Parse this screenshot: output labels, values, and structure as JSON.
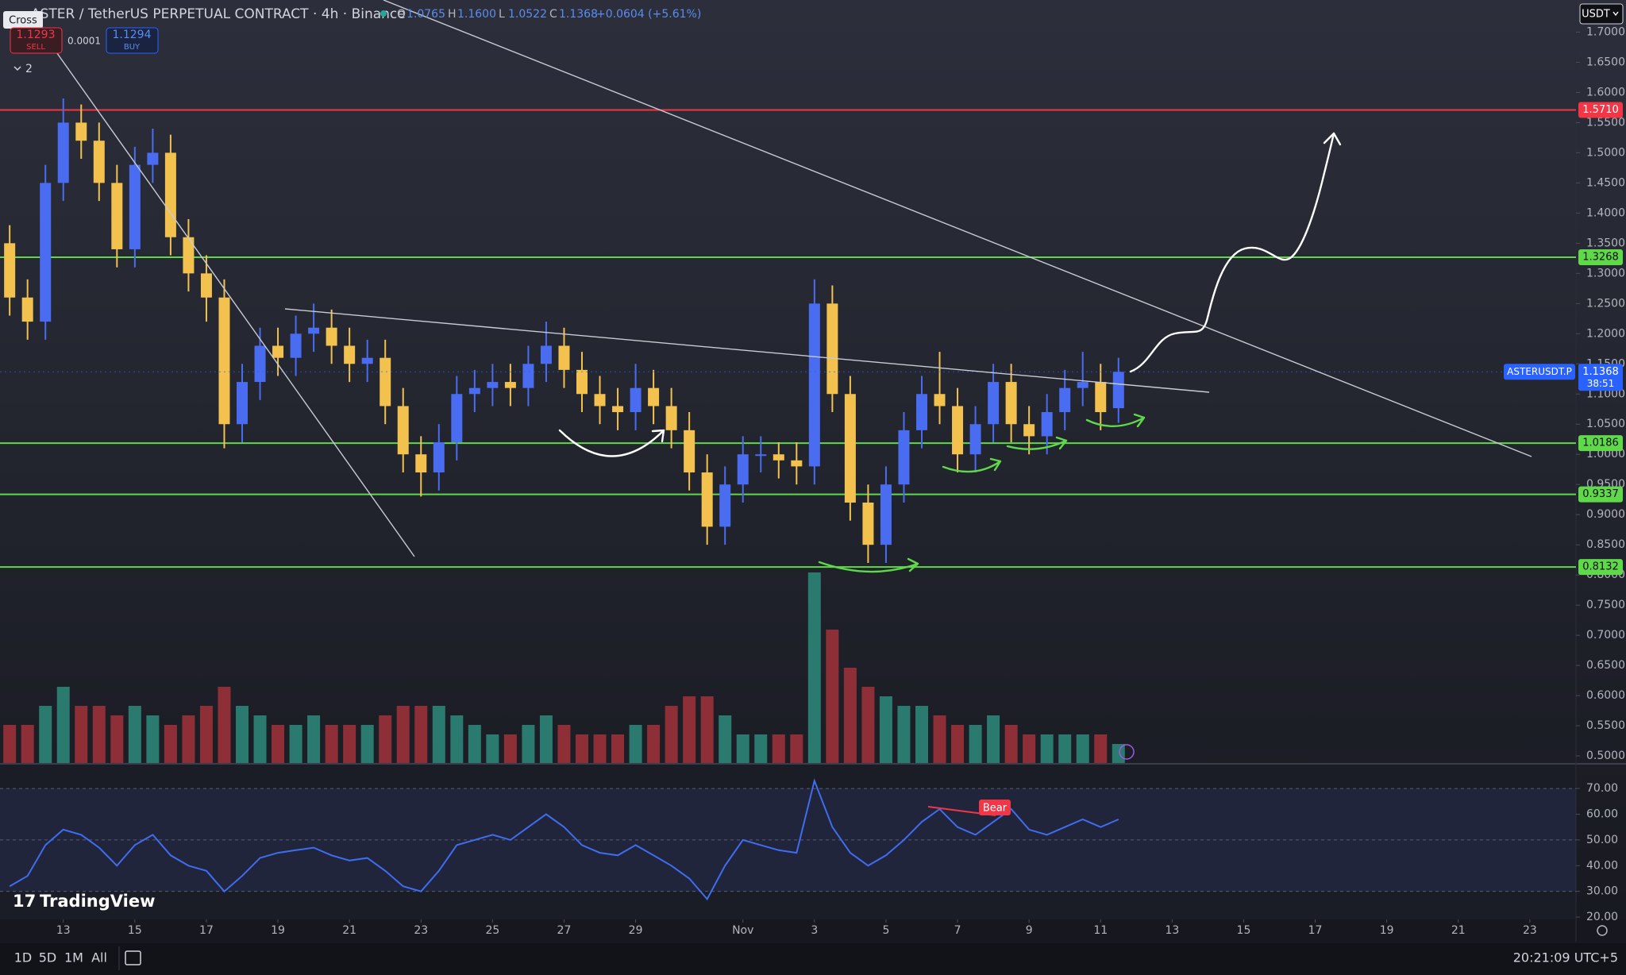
{
  "ui": {
    "cross": "Cross",
    "title": "ASTER / TetherUS PERPETUAL CONTRACT · 4h · Binance",
    "ohlc": [
      {
        "key": "O",
        "value": "1.0765"
      },
      {
        "key": "H",
        "value": "1.1600"
      },
      {
        "key": "L",
        "value": "1.0522"
      },
      {
        "key": "C",
        "value": "1.1368"
      }
    ],
    "change": "+0.0604 (+5.61%)",
    "sell_price": "1.1293",
    "sell": "SELL",
    "spread": "0.0001",
    "buy_price": "1.1294",
    "buy": "BUY",
    "indicators_count": "2",
    "currency": "USDT",
    "logo": "TradingView",
    "ranges": [
      "1D",
      "5D",
      "1M",
      "All"
    ],
    "clock": "20:21:09 UTC+5"
  },
  "chart_data": {
    "type": "candlestick",
    "x": [
      11.5,
      12,
      12.5,
      13,
      13.5,
      14,
      14.5,
      15,
      15.5,
      16,
      16.5,
      17,
      17.5,
      18,
      18.5,
      19,
      19.5,
      20,
      20.5,
      21,
      21.5,
      22,
      22.5,
      23,
      23.5,
      24,
      24.5,
      25,
      25.5,
      26,
      26.5,
      27,
      27.5,
      28,
      28.5,
      29,
      29.5,
      30,
      30.5,
      31,
      31.5,
      32,
      32.5,
      33,
      33.5,
      34,
      34.5,
      35,
      35.5,
      36,
      36.5,
      37,
      37.5,
      38,
      38.5,
      39,
      39.5,
      40,
      40.5,
      41,
      41.5,
      42,
      42.5
    ],
    "xlim": [
      11.23,
      55.29
    ],
    "xticks": [
      13,
      15,
      17,
      19,
      21,
      23,
      25,
      27,
      29,
      {
        "value": 32,
        "label": "Nov"
      },
      {
        "value": 34,
        "label": "3"
      },
      {
        "value": 36,
        "label": "5"
      },
      {
        "value": 38,
        "label": "7"
      },
      {
        "value": 40,
        "label": "9"
      },
      {
        "value": 42,
        "label": "11"
      },
      {
        "value": 44,
        "label": "13"
      },
      {
        "value": 46,
        "label": "15"
      },
      {
        "value": 48,
        "label": "17"
      },
      {
        "value": 50,
        "label": "19"
      },
      {
        "value": 52,
        "label": "21"
      },
      {
        "value": 54,
        "label": "23"
      }
    ],
    "open": [
      1.35,
      1.26,
      1.22,
      1.45,
      1.55,
      1.52,
      1.45,
      1.34,
      1.48,
      1.5,
      1.36,
      1.3,
      1.26,
      1.05,
      1.12,
      1.18,
      1.16,
      1.2,
      1.21,
      1.18,
      1.15,
      1.16,
      1.08,
      1.0,
      0.97,
      1.02,
      1.1,
      1.11,
      1.12,
      1.11,
      1.15,
      1.18,
      1.14,
      1.1,
      1.08,
      1.07,
      1.11,
      1.08,
      1.04,
      0.97,
      0.88,
      0.95,
      1.0,
      1.0,
      0.99,
      0.98,
      1.25,
      1.1,
      0.92,
      0.85,
      0.95,
      1.04,
      1.1,
      1.08,
      1.0,
      1.05,
      1.12,
      1.05,
      1.03,
      1.07,
      1.11,
      1.12,
      1.0765
    ],
    "high": [
      1.38,
      1.29,
      1.48,
      1.59,
      1.58,
      1.55,
      1.48,
      1.51,
      1.54,
      1.53,
      1.39,
      1.33,
      1.29,
      1.15,
      1.21,
      1.21,
      1.23,
      1.25,
      1.24,
      1.21,
      1.19,
      1.19,
      1.11,
      1.03,
      1.05,
      1.13,
      1.14,
      1.15,
      1.15,
      1.18,
      1.22,
      1.21,
      1.17,
      1.13,
      1.11,
      1.15,
      1.14,
      1.11,
      1.07,
      1.0,
      0.98,
      1.03,
      1.03,
      1.02,
      1.02,
      1.29,
      1.28,
      1.13,
      0.95,
      0.98,
      1.07,
      1.13,
      1.17,
      1.11,
      1.08,
      1.15,
      1.15,
      1.08,
      1.1,
      1.14,
      1.17,
      1.15,
      1.16
    ],
    "low": [
      1.23,
      1.19,
      1.19,
      1.42,
      1.49,
      1.42,
      1.31,
      1.31,
      1.45,
      1.33,
      1.27,
      1.22,
      1.01,
      1.02,
      1.09,
      1.13,
      1.13,
      1.17,
      1.15,
      1.12,
      1.12,
      1.05,
      0.97,
      0.93,
      0.94,
      0.99,
      1.07,
      1.08,
      1.08,
      1.08,
      1.12,
      1.11,
      1.07,
      1.05,
      1.04,
      1.04,
      1.05,
      1.01,
      0.94,
      0.85,
      0.85,
      0.92,
      0.97,
      0.96,
      0.95,
      0.95,
      1.07,
      0.89,
      0.82,
      0.82,
      0.92,
      1.01,
      1.05,
      0.97,
      0.97,
      1.02,
      1.02,
      1.0,
      1.0,
      1.04,
      1.08,
      1.04,
      1.0522
    ],
    "close": [
      1.26,
      1.22,
      1.45,
      1.55,
      1.52,
      1.45,
      1.34,
      1.48,
      1.5,
      1.36,
      1.3,
      1.26,
      1.05,
      1.12,
      1.18,
      1.16,
      1.2,
      1.21,
      1.18,
      1.15,
      1.16,
      1.08,
      1.0,
      0.97,
      1.02,
      1.1,
      1.11,
      1.12,
      1.11,
      1.15,
      1.18,
      1.14,
      1.1,
      1.08,
      1.07,
      1.11,
      1.08,
      1.04,
      0.97,
      0.88,
      0.95,
      1.0,
      1.0,
      0.99,
      0.98,
      1.25,
      1.1,
      0.92,
      0.85,
      0.95,
      1.04,
      1.1,
      1.08,
      1.0,
      1.05,
      1.12,
      1.05,
      1.03,
      1.07,
      1.11,
      1.12,
      1.07,
      1.1368
    ],
    "ylim": [
      0.4882,
      1.7533
    ],
    "yticks": [
      {
        "value": 1.7,
        "label": "1.7000"
      },
      {
        "value": 1.65,
        "label": "1.6500"
      },
      {
        "value": 1.6,
        "label": "1.6000"
      },
      {
        "value": 1.55,
        "label": "1.5500"
      },
      {
        "value": 1.5,
        "label": "1.5000"
      },
      {
        "value": 1.45,
        "label": "1.4500"
      },
      {
        "value": 1.4,
        "label": "1.4000"
      },
      {
        "value": 1.35,
        "label": "1.3500"
      },
      {
        "value": 1.3,
        "label": "1.3000"
      },
      {
        "value": 1.25,
        "label": "1.2500"
      },
      {
        "value": 1.2,
        "label": "1.2000"
      },
      {
        "value": 1.15,
        "label": "1.1500"
      },
      {
        "value": 1.1,
        "label": "1.1000"
      },
      {
        "value": 1.05,
        "label": "1.0500"
      },
      {
        "value": 1.0,
        "label": "1.0000"
      },
      {
        "value": 0.95,
        "label": "0.9500"
      },
      {
        "value": 0.9,
        "label": "0.9000"
      },
      {
        "value": 0.85,
        "label": "0.8500"
      },
      {
        "value": 0.8,
        "label": "0.8000"
      },
      {
        "value": 0.75,
        "label": "0.7500"
      },
      {
        "value": 0.7,
        "label": "0.7000"
      },
      {
        "value": 0.65,
        "label": "0.6500"
      },
      {
        "value": 0.6,
        "label": "0.6000"
      },
      {
        "value": 0.55,
        "label": "0.5500"
      },
      {
        "value": 0.5,
        "label": "0.5000"
      }
    ],
    "up_color": "#4a6cf0",
    "down_color": "#f2c14e",
    "volume": {
      "values": [
        2,
        2,
        3,
        4,
        3,
        3,
        2.5,
        3,
        2.5,
        2,
        2.5,
        3,
        4,
        3,
        2.5,
        2,
        2,
        2.5,
        2,
        2,
        2,
        2.5,
        3,
        3,
        3,
        2.5,
        2,
        1.5,
        1.5,
        2,
        2.5,
        2,
        1.5,
        1.5,
        1.5,
        2,
        2,
        3,
        3.5,
        3.5,
        2.5,
        1.5,
        1.5,
        1.5,
        1.5,
        10,
        7,
        5,
        4,
        3.5,
        3,
        3,
        2.5,
        2,
        2,
        2.5,
        2,
        1.5,
        1.5,
        1.5,
        1.5,
        1.5,
        1
      ],
      "up_color": "#2b7a6f",
      "down_color": "#8e2f38"
    },
    "levels": [
      {
        "value": 1.571,
        "label": "1.5710",
        "color": "#f23645"
      },
      {
        "value": 1.3268,
        "label": "1.3268",
        "color": "#5fd94a"
      },
      {
        "value": 1.0186,
        "label": "1.0186",
        "color": "#5fd94a"
      },
      {
        "value": 0.9337,
        "label": "0.9337",
        "color": "#5fd94a"
      },
      {
        "value": 0.8132,
        "label": "0.8132",
        "color": "#5fd94a"
      }
    ],
    "last_price": {
      "value": 1.1368,
      "label": "1.1368",
      "symbol": "ASTERUSDT.P",
      "countdown": "38:51",
      "color": "#2962ff"
    },
    "rsi": {
      "values": [
        32,
        36,
        48,
        54,
        52,
        47,
        40,
        48,
        52,
        44,
        40,
        38,
        30,
        36,
        43,
        45,
        46,
        47,
        44,
        42,
        43,
        38,
        32,
        30,
        38,
        48,
        50,
        52,
        50,
        55,
        60,
        55,
        48,
        45,
        44,
        48,
        44,
        40,
        35,
        27,
        40,
        50,
        48,
        46,
        45,
        73,
        55,
        45,
        40,
        44,
        50,
        57,
        62,
        55,
        52,
        57,
        62,
        54,
        52,
        55,
        58,
        55,
        58
      ],
      "color": "#3f6df0",
      "ylim": [
        19.4,
        79.6
      ],
      "band": [
        30,
        70
      ],
      "mid": 50,
      "yticks": [
        {
          "value": 70,
          "label": "70.00"
        },
        {
          "value": 60,
          "label": "60.00"
        },
        {
          "value": 50,
          "label": "50.00"
        },
        {
          "value": 40,
          "label": "40.00"
        },
        {
          "value": 30,
          "label": "30.00"
        },
        {
          "value": 20,
          "label": "20.00"
        }
      ],
      "annotation": "Bear"
    }
  }
}
